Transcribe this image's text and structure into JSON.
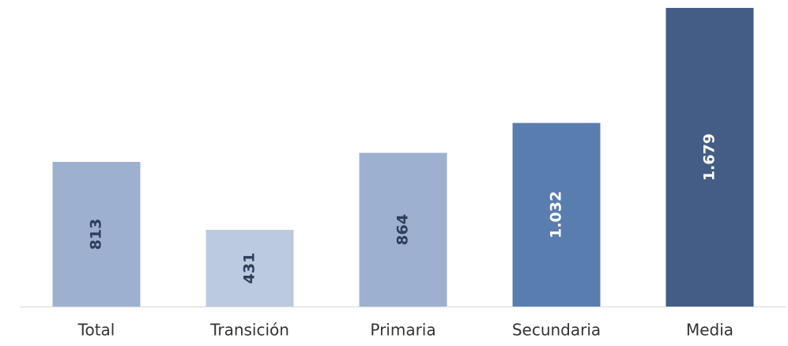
{
  "chart_data": {
    "type": "bar",
    "categories": [
      "Total",
      "Transición",
      "Primaria",
      "Secundaria",
      "Media"
    ],
    "values": [
      813,
      431,
      864,
      1032,
      1679
    ],
    "value_labels": [
      "813",
      "431",
      "864",
      "1.032",
      "1.679"
    ],
    "colors": [
      "#9eb0cf",
      "#bccadf",
      "#9eb0cf",
      "#5a7db0",
      "#435d86"
    ],
    "label_colors": [
      "#2e3f5c",
      "#2e3f5c",
      "#2e3f5c",
      "#ffffff",
      "#ffffff"
    ]
  }
}
